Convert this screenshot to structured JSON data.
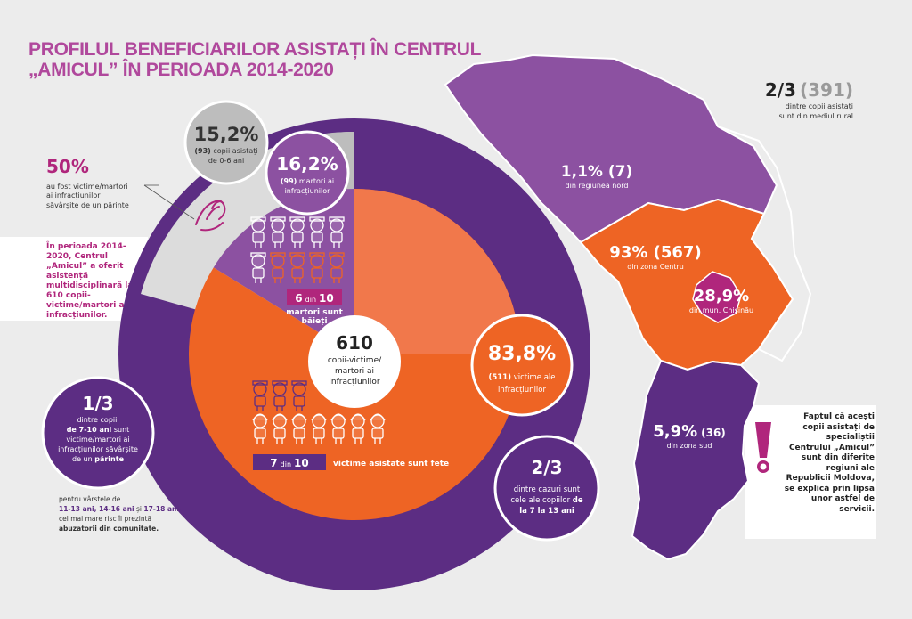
{
  "title": {
    "line1": "PROFILUL BENEFICIARILOR ASISTAȚI ÎN CENTRUL",
    "line2": "„AMICUL” ÎN PERIOADA 2014-2020"
  },
  "colors": {
    "purple": "#5c2d83",
    "light_purple": "#8c51a1",
    "orange": "#ee6424",
    "salmon": "#f1784b",
    "gray": "#bdbdbd",
    "light_gray": "#dcdcdc",
    "magenta": "#b0267c"
  },
  "chart_data": [
    {
      "type": "pie",
      "center_value": "610",
      "center_label": "copii-victime/ martori ai infracțiunilor",
      "slices": [
        {
          "label": "victime ale infracțiunilor",
          "percent": 83.8,
          "count": 511
        },
        {
          "label": "martori ai infracțiunilor",
          "percent": 16.2,
          "count": 99
        }
      ],
      "ring_segments": [
        {
          "label": "copii asistați de 0-6 ani",
          "percent": 15.2,
          "count": 93
        },
        {
          "label": "dintre copiii de 7-10 ani",
          "fraction": "1/3"
        },
        {
          "label": "dintre cazuri sunt cele ale copiilor de la 7 la 13 ani",
          "fraction": "2/3"
        }
      ],
      "icon_stats": [
        {
          "text_pre": "6",
          "text_mid": "din",
          "text_post": "10",
          "caption": "martori sunt băieți",
          "filled": 6,
          "total": 10
        },
        {
          "text_pre": "7",
          "text_mid": "din",
          "text_post": "10",
          "caption": "victime asistate sunt fete",
          "filled": 7,
          "total": 10
        }
      ]
    },
    {
      "type": "map",
      "regions": [
        {
          "name": "din regiunea nord",
          "percent": 1.1,
          "count": 7
        },
        {
          "name": "din zona Centru",
          "percent": 93,
          "count": 567
        },
        {
          "name": "din mun. Chișinău",
          "percent": 28.9
        },
        {
          "name": "din zona sud",
          "percent": 5.9,
          "count": 36
        }
      ],
      "rural": {
        "fraction": "2/3",
        "count": "(391)",
        "label1": "dintre copii asistați",
        "label2": "sunt din mediul rural"
      }
    }
  ],
  "labels": {
    "fifty": {
      "value": "50%",
      "l1": "au fost victime/martori",
      "l2": "ai infracțiunilor",
      "l3": "săvârșite de un părinte"
    },
    "intro": "În perioada 2014-2020, Centrul „Amicul” a oferit asistență multidisciplinară la 610 copii-victime/martori ai infracțiunilor.",
    "c152": {
      "value": "15,2%",
      "count": "(93)",
      "l1": "copii asistați",
      "l2": "de 0-6 ani"
    },
    "c162": {
      "value": "16,2%",
      "count": "(99)",
      "l1": "martori ai",
      "l2": "infracțiunilor"
    },
    "c838": {
      "value": "83,8%",
      "count": "(511)",
      "l1": "victime ale",
      "l2": "infracțiunilor"
    },
    "c610": {
      "value": "610",
      "l1": "copii-victime/",
      "l2": "martori ai",
      "l3": "infracțiunilor"
    },
    "c13": {
      "value": "1/3",
      "l1": "dintre copiii",
      "l2a": "de 7-10 ani",
      "l2b": " sunt",
      "l3": "victime/martori ai",
      "l4": "infracțiunilor săvârșite",
      "l5a": "de un ",
      "l5b": "părinte"
    },
    "c23": {
      "value": "2/3",
      "l1": "dintre cazuri sunt",
      "l2": "cele ale copiilor",
      "l2b": "de",
      "l3": "la 7 la 13 ani"
    },
    "ages": {
      "l1": "pentru vârstele de",
      "l2a": "11-13 ani, 14-16 ani",
      "l2b": " și ",
      "l2c": "17-18 ani,",
      "l3": "cel mai mare risc îl prezintă",
      "l4": "abuzatorii din comunitate."
    },
    "boys": {
      "n1": "6",
      "mid": "din",
      "n2": "10",
      "cap1": "martori sunt",
      "cap2": "băieți"
    },
    "girls": {
      "n1": "7",
      "mid": "din",
      "n2": "10",
      "cap": "victime asistate sunt fete"
    },
    "rural": {
      "value": "2/3",
      "count": "(391)",
      "l1": "dintre copii asistați",
      "l2": "sunt din mediul rural"
    },
    "nord": {
      "value": "1,1% (7)",
      "label": "din regiunea nord"
    },
    "centru": {
      "value": "93% (567)",
      "label": "din zona Centru"
    },
    "chisinau": {
      "value": "28,9%",
      "label": "din mun. Chișinău"
    },
    "sud": {
      "value": "5,9%",
      "count": "(36)",
      "label": "din zona sud"
    },
    "note": {
      "mark": "!",
      "text": "Faptul că acești copii asistați de specialiștii Centrului „Amicul” sunt din diferite regiuni ale Republicii Moldova, se explică prin lipsa unor astfel de servicii."
    }
  }
}
